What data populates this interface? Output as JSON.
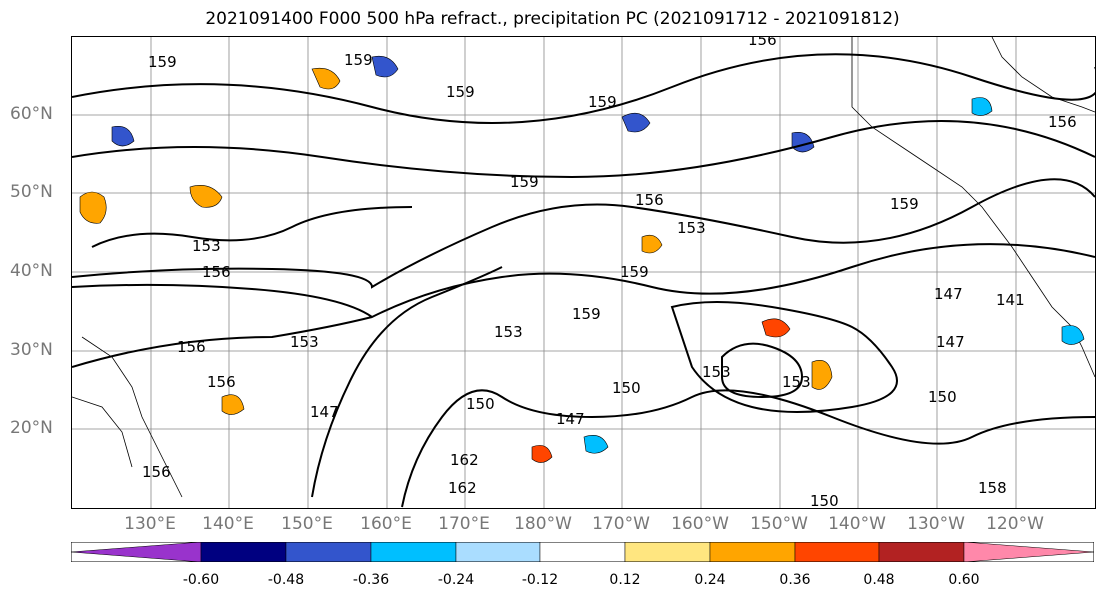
{
  "title": "2021091400 F000 500 hPa refract., precipitation PC (2021091712 - 2021091812)",
  "lat_labels": [
    "60°N",
    "50°N",
    "40°N",
    "30°N",
    "20°N"
  ],
  "lon_labels": [
    "130°E",
    "140°E",
    "150°E",
    "160°E",
    "170°E",
    "180°W",
    "170°W",
    "160°W",
    "150°W",
    "140°W",
    "130°W",
    "120°W"
  ],
  "contour_labels": [
    "159",
    "159",
    "156",
    "159",
    "159",
    "156",
    "159",
    "156",
    "159",
    "156",
    "153",
    "153",
    "156",
    "153",
    "159",
    "159",
    "153",
    "147",
    "141",
    "156",
    "153",
    "150",
    "150",
    "147",
    "150",
    "147",
    "150",
    "162",
    "162",
    "158",
    "156",
    "153",
    "147"
  ],
  "colorbar": {
    "tick_labels": [
      "-0.60",
      "-0.48",
      "-0.36",
      "-0.24",
      "-0.12",
      "0.12",
      "0.24",
      "0.36",
      "0.48",
      "0.60"
    ],
    "colors": [
      "#9933cc",
      "#000080",
      "#3355cc",
      "#00bfff",
      "#aaddff",
      "#ffffff",
      "#ffe680",
      "#ffa500",
      "#ff4500",
      "#b22222",
      "#ff88aa"
    ]
  }
}
